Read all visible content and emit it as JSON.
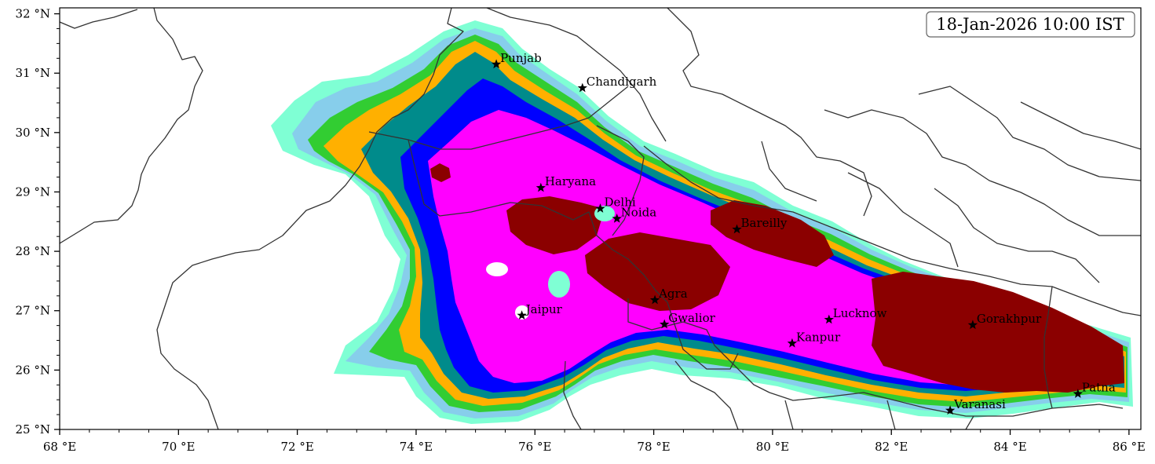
{
  "timestamp": "18-Jan-2026 10:00 IST",
  "axes": {
    "x_ticks": [
      "68 °E",
      "70 °E",
      "72 °E",
      "74 °E",
      "76 °E",
      "78 °E",
      "80 °E",
      "82 °E",
      "84 °E",
      "86 °E"
    ],
    "y_ticks": [
      "25 °N",
      "26 °N",
      "27 °N",
      "28 °N",
      "29 °N",
      "30 °N",
      "31 °N",
      "32 °N"
    ],
    "lon_range": [
      68,
      86.2
    ],
    "lat_range": [
      25,
      32.1
    ]
  },
  "cities": [
    {
      "name": "Punjab",
      "lon": 75.35,
      "lat": 31.15
    },
    {
      "name": "Chandigarh",
      "lon": 76.8,
      "lat": 30.75
    },
    {
      "name": "Haryana",
      "lon": 76.1,
      "lat": 29.07
    },
    {
      "name": "Delhi",
      "lon": 77.1,
      "lat": 28.72
    },
    {
      "name": "Noida",
      "lon": 77.38,
      "lat": 28.55
    },
    {
      "name": "Bareilly",
      "lon": 79.4,
      "lat": 28.37
    },
    {
      "name": "Agra",
      "lon": 78.02,
      "lat": 27.18
    },
    {
      "name": "Jaipur",
      "lon": 75.78,
      "lat": 26.92
    },
    {
      "name": "Gwalior",
      "lon": 78.18,
      "lat": 26.77
    },
    {
      "name": "Lucknow",
      "lon": 80.95,
      "lat": 26.85
    },
    {
      "name": "Kanpur",
      "lon": 80.33,
      "lat": 26.45
    },
    {
      "name": "Gorakhpur",
      "lon": 83.37,
      "lat": 26.76
    },
    {
      "name": "Varanasi",
      "lon": 82.99,
      "lat": 25.32
    },
    {
      "name": "Patna",
      "lon": 85.14,
      "lat": 25.6
    }
  ],
  "legend_colors": {
    "level_1": "#7fffd4",
    "level_2": "#87ceeb",
    "level_3": "#32cd32",
    "level_4": "#ffb000",
    "level_5": "#008b8b",
    "level_6": "#0000ff",
    "level_7": "#ff00ff",
    "level_8": "#8b0000"
  }
}
